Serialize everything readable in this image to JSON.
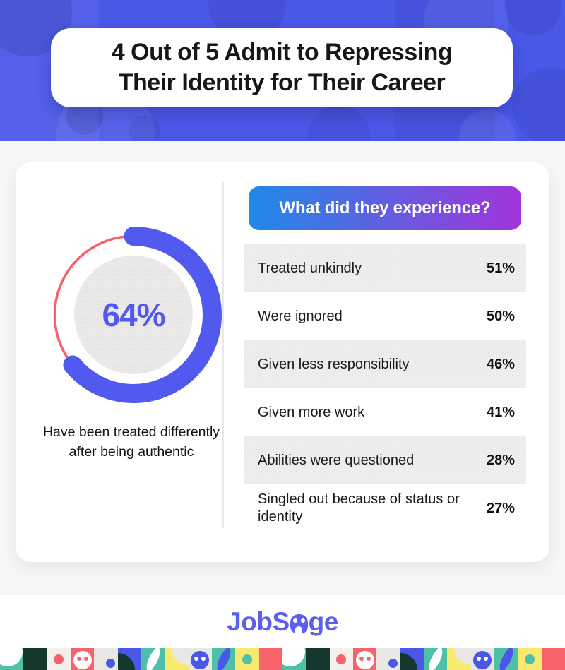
{
  "header": {
    "title_lines": [
      "4 Out of 5 Admit to Repressing",
      "Their Identity for Their Career"
    ]
  },
  "stat_panel": {
    "value": "64%",
    "caption": "Have been treated differently after being authentic"
  },
  "experience_panel": {
    "heading": "What did they experience?",
    "rows": [
      {
        "label": "Treated unkindly",
        "value": "51%"
      },
      {
        "label": "Were ignored",
        "value": "50%"
      },
      {
        "label": "Given less responsibility",
        "value": "46%"
      },
      {
        "label": "Given more work",
        "value": "41%"
      },
      {
        "label": "Abilities were questioned",
        "value": "28%"
      },
      {
        "label": "Singled out because of status or identity",
        "value": "27%"
      }
    ]
  },
  "logo": {
    "name": "JobSage",
    "prefix": "JobS",
    "suffix": "ge"
  },
  "colors": {
    "header_bg": "#4a58e8",
    "accent_blue": "#5259ee",
    "ring_red": "#f8616b",
    "gradient_start": "#2089e8",
    "gradient_end": "#a234da",
    "row_gray": "#efeeed",
    "logo_purple": "#5b5fee"
  },
  "chart_data": [
    {
      "type": "pie",
      "subtype": "donut",
      "title": "Have been treated differently after being authentic",
      "labels": [
        "Treated differently after being authentic",
        "Remainder"
      ],
      "values": [
        64,
        36
      ],
      "center_label": "64%",
      "colors": [
        "#5259ee",
        "#ffffff"
      ],
      "ring_accent_color": "#f8616b"
    },
    {
      "type": "table",
      "title": "What did they experience?",
      "categories": [
        "Treated unkindly",
        "Were ignored",
        "Given less responsibility",
        "Given more work",
        "Abilities were questioned",
        "Singled out because of status or identity"
      ],
      "values": [
        51,
        50,
        46,
        41,
        28,
        27
      ],
      "unit": "%"
    }
  ],
  "footer_tiles": [
    {
      "bg": "#4fc0a8",
      "shape": "circle-tl",
      "fg": "#ffffff"
    },
    {
      "bg": "#14382e"
    },
    {
      "bg": "#f2f0ed",
      "shape": "dot",
      "fg": "#f8626a"
    },
    {
      "bg": "#f8626a",
      "shape": "owl",
      "fg": "#ffffff",
      "eye": "#f8626a"
    },
    {
      "bg": "#e9e7e3",
      "shape": "dot-br",
      "fg": "#4a57e8"
    },
    {
      "bg": "#4a57e8",
      "shape": "quarter-bl",
      "fg": "#14382e"
    },
    {
      "bg": "#4fc0a8",
      "shape": "leaf",
      "fg": "#ffffff"
    },
    {
      "bg": "#f9e96e",
      "shape": "quarter-tr",
      "fg": "#e9e7e3"
    },
    {
      "bg": "#e9e7e3",
      "shape": "owl",
      "fg": "#4a57e8",
      "eye": "#ffffff"
    },
    {
      "bg": "#4fc0a8",
      "shape": "leaf",
      "fg": "#4a57e8"
    },
    {
      "bg": "#f9e96e",
      "shape": "dot",
      "fg": "#4fc0a8"
    },
    {
      "bg": "#f8626a"
    },
    {
      "bg": "#4fc0a8",
      "shape": "circle-tl",
      "fg": "#ffffff"
    },
    {
      "bg": "#14382e"
    },
    {
      "bg": "#f2f0ed",
      "shape": "dot",
      "fg": "#f8626a"
    },
    {
      "bg": "#f8626a",
      "shape": "owl",
      "fg": "#ffffff",
      "eye": "#f8626a"
    },
    {
      "bg": "#e9e7e3",
      "shape": "dot-br",
      "fg": "#4a57e8"
    },
    {
      "bg": "#4a57e8",
      "shape": "quarter-bl",
      "fg": "#14382e"
    },
    {
      "bg": "#4fc0a8",
      "shape": "leaf",
      "fg": "#ffffff"
    },
    {
      "bg": "#f9e96e",
      "shape": "quarter-tr",
      "fg": "#e9e7e3"
    },
    {
      "bg": "#e9e7e3",
      "shape": "owl",
      "fg": "#4a57e8",
      "eye": "#ffffff"
    },
    {
      "bg": "#4fc0a8",
      "shape": "leaf",
      "fg": "#4a57e8"
    },
    {
      "bg": "#f9e96e",
      "shape": "dot",
      "fg": "#4fc0a8"
    },
    {
      "bg": "#f8626a"
    }
  ]
}
